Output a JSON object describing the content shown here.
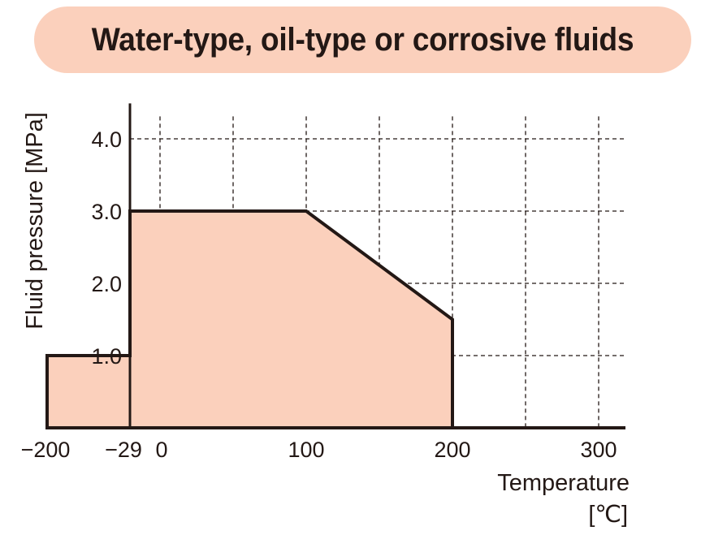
{
  "header": {
    "title": "Water-type, oil-type or corrosive fluids"
  },
  "chart_data": {
    "type": "area",
    "title": "Water-type, oil-type or corrosive fluids",
    "xlabel": "Temperature",
    "xunit": "[℃]",
    "ylabel": "Fluid pressure [MPa]",
    "x_ticks": [
      -200,
      -29,
      0,
      100,
      200,
      300
    ],
    "x_tick_labels": [
      "−200",
      "−29",
      "0",
      "100",
      "200",
      "300"
    ],
    "x_grid": [
      0,
      50,
      100,
      150,
      200,
      250,
      300
    ],
    "y_ticks": [
      1.0,
      2.0,
      3.0,
      4.0
    ],
    "y_tick_labels": [
      "1.0",
      "2.0",
      "3.0",
      "4.0"
    ],
    "xlim": [
      -200,
      320
    ],
    "ylim": [
      0,
      4.4
    ],
    "grid": true,
    "series": [
      {
        "x": [
          -200,
          -200,
          -29,
          -29,
          100,
          200,
          200
        ],
        "y": [
          0,
          1.0,
          1.0,
          3.0,
          3.0,
          1.5,
          0
        ],
        "fill": "#fbd0bc",
        "stroke": "#231815"
      }
    ]
  }
}
